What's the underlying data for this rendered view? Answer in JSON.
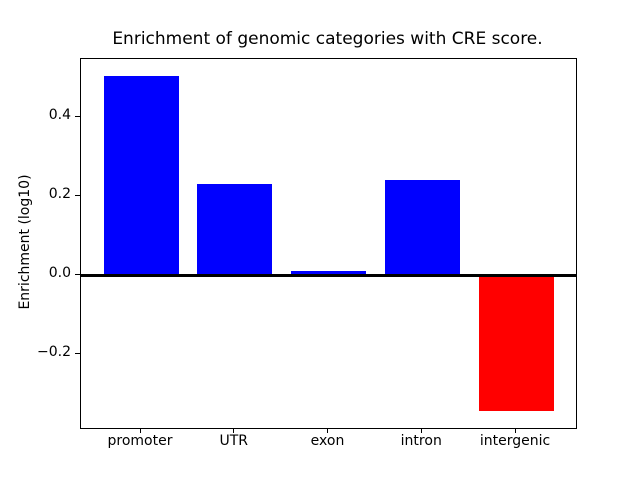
{
  "chart_data": {
    "type": "bar",
    "title": "Enrichment of genomic categories with CRE score.",
    "xlabel": "",
    "ylabel": "Enrichment (log10)",
    "categories": [
      "promoter",
      "UTR",
      "exon",
      "intron",
      "intergenic"
    ],
    "values": [
      0.505,
      0.23,
      0.01,
      0.24,
      -0.345
    ],
    "positive_color": "#0000ff",
    "negative_color": "#ff0000",
    "bar_colors": [
      "#0000ff",
      "#0000ff",
      "#0000ff",
      "#0000ff",
      "#ff0000"
    ],
    "ylim": [
      -0.3875,
      0.5475
    ],
    "xlim": [
      -0.64,
      4.64
    ],
    "bar_width_units": 0.8,
    "yticks": [
      0.4,
      0.2,
      0.0,
      -0.2
    ],
    "ytick_labels": [
      "0.4",
      "0.2",
      "0.0",
      "−0.2"
    ],
    "zero_line": true,
    "grid": false,
    "legend": "none",
    "axis_color": "#000000",
    "background_color": "#ffffff"
  }
}
